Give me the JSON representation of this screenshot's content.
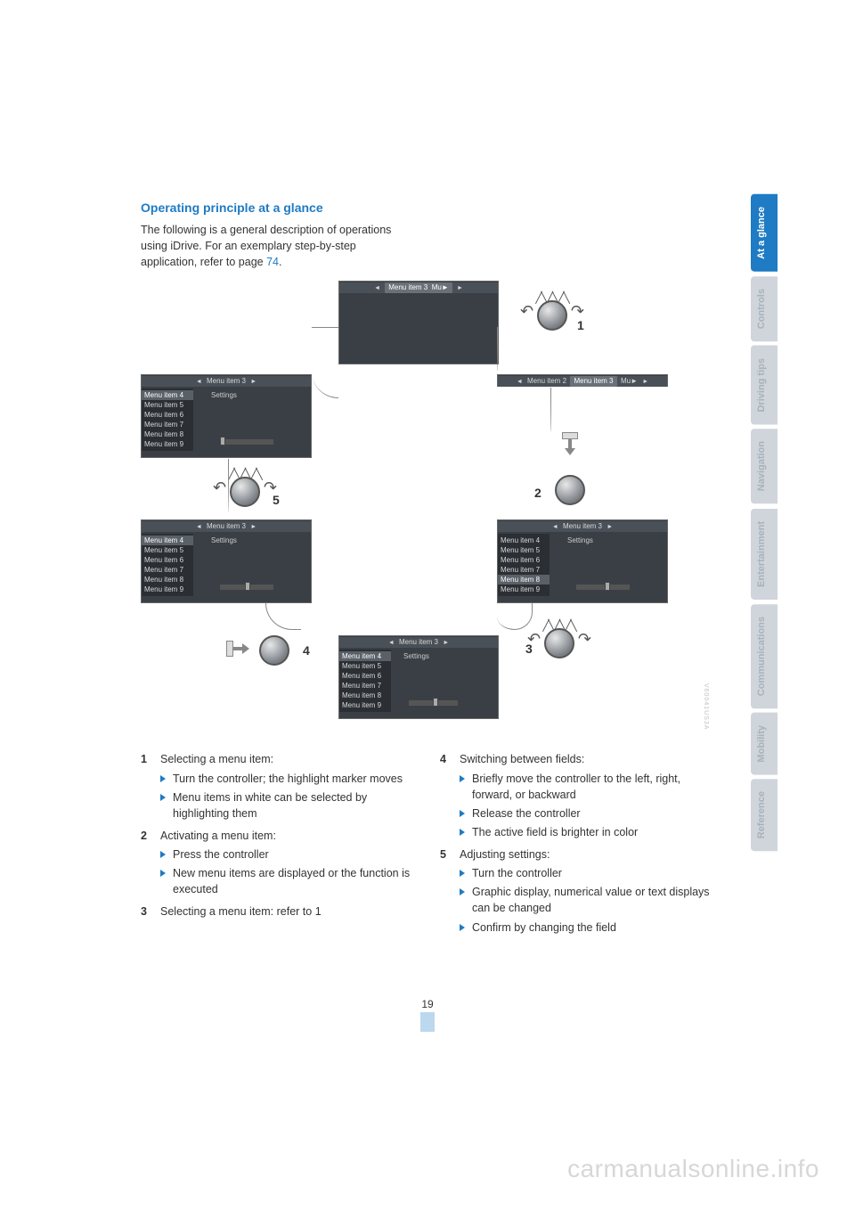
{
  "heading": "Operating principle at a glance",
  "intro_pre": "The following is a general description of operations using iDrive. For an exemplary step-by-step application, refer to page ",
  "intro_ref": "74",
  "intro_post": ".",
  "tabs": [
    {
      "label": "At a glance",
      "active": true
    },
    {
      "label": "Controls",
      "active": false
    },
    {
      "label": "Driving tips",
      "active": false
    },
    {
      "label": "Navigation",
      "active": false
    },
    {
      "label": "Entertainment",
      "active": false
    },
    {
      "label": "Communications",
      "active": false
    },
    {
      "label": "Mobility",
      "active": false
    },
    {
      "label": "Reference",
      "active": false
    }
  ],
  "figure": {
    "title_menu3": "Menu item 3",
    "title_menu2": "Menu item 2",
    "title_mu": "Mu",
    "settings": "Settings",
    "items": [
      "Menu item 4",
      "Menu item 5",
      "Menu item 6",
      "Menu item 7",
      "Menu item 8",
      "Menu item 9"
    ],
    "labels": {
      "n1": "1",
      "n2": "2",
      "n3": "3",
      "n4": "4",
      "n5": "5"
    },
    "watermark_code": "V60041US3A"
  },
  "left_items": [
    {
      "num": "1",
      "title": "Selecting a menu item:",
      "subs": [
        "Turn the controller; the highlight marker moves",
        "Menu items in white can be selected by highlighting them"
      ]
    },
    {
      "num": "2",
      "title": "Activating a menu item:",
      "subs": [
        "Press the controller",
        "New menu items are displayed or the function is executed"
      ]
    },
    {
      "num": "3",
      "title": "Selecting a menu item: refer to 1",
      "subs": []
    }
  ],
  "right_items": [
    {
      "num": "4",
      "title": "Switching between fields:",
      "subs": [
        "Briefly move the controller to the left, right, forward, or backward",
        "Release the controller",
        "The active field is brighter in color"
      ]
    },
    {
      "num": "5",
      "title": "Adjusting settings:",
      "subs": [
        "Turn the controller",
        "Graphic display, numerical value or text displays can be changed",
        "Confirm by changing the field"
      ]
    }
  ],
  "page_number": "19",
  "watermark": "carmanualsonline.info"
}
